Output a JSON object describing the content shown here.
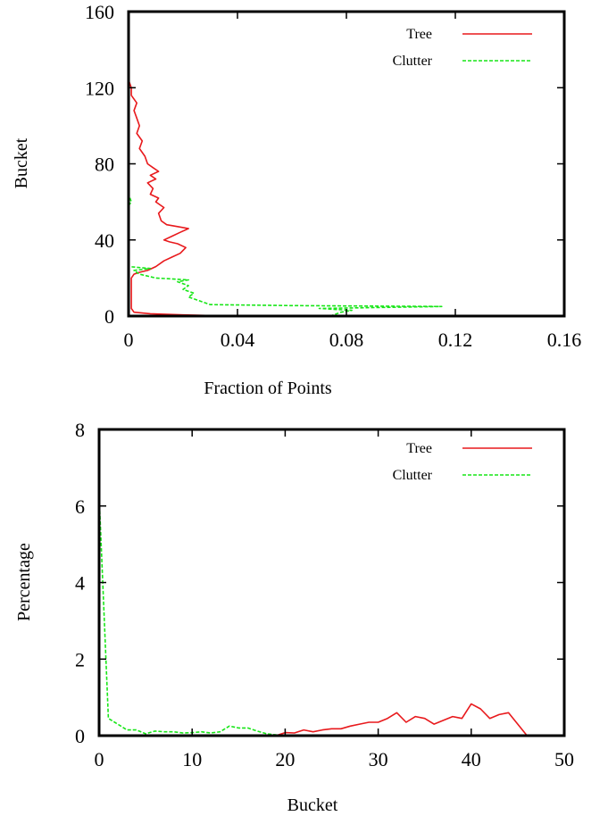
{
  "chart_data": [
    {
      "type": "line",
      "xlabel": "Fraction of Points",
      "ylabel": "Bucket",
      "xlim": [
        0,
        0.16
      ],
      "ylim": [
        0,
        160
      ],
      "xticks": [
        "0",
        "0.04",
        "0.08",
        "0.12",
        "0.16"
      ],
      "yticks": [
        "0",
        "40",
        "80",
        "120",
        "160"
      ],
      "xtick_values": [
        0,
        0.04,
        0.08,
        0.12,
        0.16
      ],
      "ytick_values": [
        0,
        40,
        80,
        120,
        160
      ],
      "grid": false,
      "legend": "top-right",
      "series": [
        {
          "name": "Tree",
          "color": "#e8191c",
          "dash": "solid",
          "points": [
            [
              0.037,
              0
            ],
            [
              0.02,
              0.6
            ],
            [
              0.008,
              1.2
            ],
            [
              0.002,
              2
            ],
            [
              0.001,
              4
            ],
            [
              0.001,
              8
            ],
            [
              0.001,
              14
            ],
            [
              0.001,
              20
            ],
            [
              0.002,
              22
            ],
            [
              0.004,
              23
            ],
            [
              0.007,
              24
            ],
            [
              0.01,
              26
            ],
            [
              0.013,
              29
            ],
            [
              0.016,
              31
            ],
            [
              0.019,
              33
            ],
            [
              0.021,
              36
            ],
            [
              0.018,
              38
            ],
            [
              0.015,
              39
            ],
            [
              0.013,
              40
            ],
            [
              0.016,
              42
            ],
            [
              0.019,
              44
            ],
            [
              0.022,
              46
            ],
            [
              0.018,
              47
            ],
            [
              0.014,
              48
            ],
            [
              0.012,
              50
            ],
            [
              0.011,
              54
            ],
            [
              0.013,
              57
            ],
            [
              0.01,
              60
            ],
            [
              0.011,
              62
            ],
            [
              0.008,
              64
            ],
            [
              0.009,
              67
            ],
            [
              0.007,
              70
            ],
            [
              0.01,
              72
            ],
            [
              0.008,
              74
            ],
            [
              0.011,
              76
            ],
            [
              0.009,
              78
            ],
            [
              0.007,
              80
            ],
            [
              0.006,
              84
            ],
            [
              0.004,
              88
            ],
            [
              0.005,
              92
            ],
            [
              0.003,
              96
            ],
            [
              0.004,
              100
            ],
            [
              0.003,
              104
            ],
            [
              0.002,
              108
            ],
            [
              0.003,
              112
            ],
            [
              0.001,
              116
            ],
            [
              0.001,
              120
            ],
            [
              0,
              124
            ]
          ]
        },
        {
          "name": "Clutter",
          "color": "#17e617",
          "dash": "dashed",
          "points": [
            [
              0.074,
              0
            ],
            [
              0.076,
              1
            ],
            [
              0.078,
              2
            ],
            [
              0.082,
              3
            ],
            [
              0.07,
              4
            ],
            [
              0.115,
              5
            ],
            [
              0.06,
              5.5
            ],
            [
              0.03,
              6
            ],
            [
              0.026,
              8
            ],
            [
              0.022,
              10
            ],
            [
              0.024,
              12
            ],
            [
              0.02,
              14
            ],
            [
              0.022,
              16
            ],
            [
              0.018,
              18
            ],
            [
              0.022,
              19
            ],
            [
              0.01,
              20
            ],
            [
              0.004,
              22
            ],
            [
              0.002,
              24
            ],
            [
              0.008,
              25
            ],
            [
              0,
              26
            ]
          ]
        },
        {
          "name": "",
          "color": "#17e617",
          "dash": "dashed",
          "points": [
            [
              0,
              58
            ],
            [
              0.001,
              60
            ],
            [
              0,
              64
            ],
            [
              0,
              68
            ],
            [
              0,
              70
            ]
          ]
        }
      ]
    },
    {
      "type": "line",
      "xlabel": "Bucket",
      "ylabel": "Percentage",
      "xlim": [
        0,
        50
      ],
      "ylim": [
        0,
        8
      ],
      "xticks": [
        "0",
        "10",
        "20",
        "30",
        "40",
        "50"
      ],
      "yticks": [
        "0",
        "2",
        "4",
        "6",
        "8"
      ],
      "xtick_values": [
        0,
        10,
        20,
        30,
        40,
        50
      ],
      "ytick_values": [
        0,
        2,
        4,
        6,
        8
      ],
      "grid": false,
      "legend": "top-right",
      "series": [
        {
          "name": "Tree",
          "color": "#e8191c",
          "dash": "solid",
          "points": [
            [
              19,
              0
            ],
            [
              20,
              0.08
            ],
            [
              21,
              0.07
            ],
            [
              22,
              0.15
            ],
            [
              23,
              0.1
            ],
            [
              24,
              0.15
            ],
            [
              25,
              0.18
            ],
            [
              26,
              0.18
            ],
            [
              27,
              0.25
            ],
            [
              28,
              0.3
            ],
            [
              29,
              0.35
            ],
            [
              30,
              0.35
            ],
            [
              31,
              0.45
            ],
            [
              32,
              0.6
            ],
            [
              33,
              0.35
            ],
            [
              34,
              0.5
            ],
            [
              35,
              0.45
            ],
            [
              36,
              0.3
            ],
            [
              37,
              0.4
            ],
            [
              38,
              0.5
            ],
            [
              39,
              0.45
            ],
            [
              40,
              0.83
            ],
            [
              41,
              0.7
            ],
            [
              42,
              0.45
            ],
            [
              43,
              0.55
            ],
            [
              44,
              0.6
            ],
            [
              45,
              0.3
            ],
            [
              46,
              0
            ]
          ]
        },
        {
          "name": "Clutter",
          "color": "#17e617",
          "dash": "dashed",
          "points": [
            [
              0,
              6.3
            ],
            [
              1,
              0.45
            ],
            [
              2,
              0.3
            ],
            [
              3,
              0.15
            ],
            [
              4,
              0.15
            ],
            [
              5,
              0.05
            ],
            [
              6,
              0.12
            ],
            [
              7,
              0.1
            ],
            [
              8,
              0.1
            ],
            [
              9,
              0.07
            ],
            [
              10,
              0.08
            ],
            [
              11,
              0.1
            ],
            [
              12,
              0.07
            ],
            [
              13,
              0.1
            ],
            [
              14,
              0.25
            ],
            [
              15,
              0.2
            ],
            [
              16,
              0.2
            ],
            [
              17,
              0.12
            ],
            [
              18,
              0.05
            ],
            [
              19,
              0.02
            ],
            [
              20,
              0
            ]
          ]
        }
      ]
    }
  ]
}
